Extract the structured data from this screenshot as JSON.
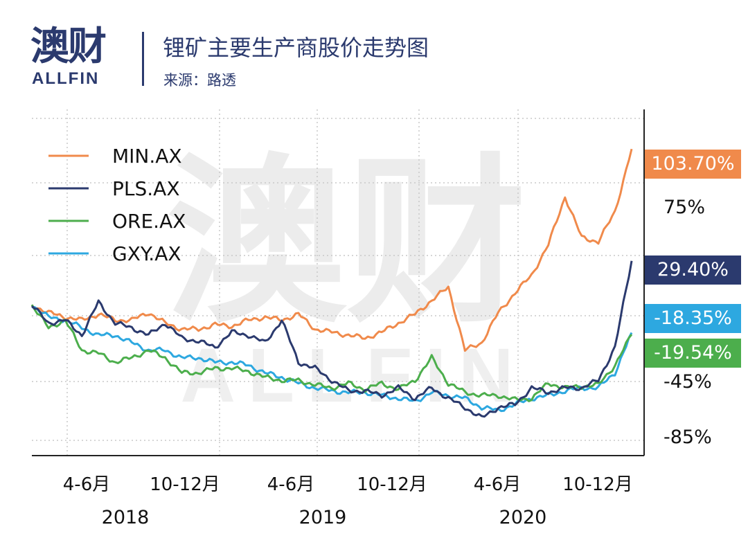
{
  "brand": {
    "name_cn": "澳财",
    "name_en": "ALLFIN"
  },
  "header": {
    "title": "锂矿主要生产商股价走势图",
    "source": "来源：路透"
  },
  "chart_data": {
    "type": "line",
    "title": "锂矿主要生产商股价走势图",
    "subtitle": "来源：路透",
    "xlabel": "",
    "ylabel": "",
    "x_tick_labels": [
      "4-6月",
      "10-12月",
      "4-6月",
      "10-12月",
      "4-6月",
      "10-12月"
    ],
    "x_group_labels": [
      "2018",
      "2019",
      "2020"
    ],
    "y_tick_labels": [
      "75%",
      "-45%",
      "-85%"
    ],
    "ylim": [
      -100,
      130
    ],
    "grid": true,
    "legend_position": "top-left",
    "end_labels": [
      "103.70%",
      "29.40%",
      "-18.35%",
      "-19.54%"
    ],
    "colors": {
      "MIN.AX": "#f08a4b",
      "PLS.AX": "#2b3a6e",
      "ORE.AX": "#4cae4c",
      "GXY.AX": "#2da8e0"
    },
    "x": [
      "2018-01",
      "2018-02",
      "2018-03",
      "2018-04",
      "2018-05",
      "2018-06",
      "2018-07",
      "2018-08",
      "2018-09",
      "2018-10",
      "2018-11",
      "2018-12",
      "2019-01",
      "2019-02",
      "2019-03",
      "2019-04",
      "2019-05",
      "2019-06",
      "2019-07",
      "2019-08",
      "2019-09",
      "2019-10",
      "2019-11",
      "2019-12",
      "2020-01",
      "2020-02",
      "2020-03",
      "2020-04",
      "2020-05",
      "2020-06",
      "2020-07",
      "2020-08",
      "2020-09",
      "2020-10",
      "2020-11",
      "2020-12",
      "2021-01"
    ],
    "series": [
      {
        "name": "MIN.AX",
        "values": [
          0,
          -5,
          -8,
          -10,
          -6,
          -10,
          -10,
          -5,
          -12,
          -16,
          -16,
          -13,
          -14,
          -10,
          -8,
          -10,
          -6,
          -16,
          -18,
          -20,
          -22,
          -18,
          -12,
          -6,
          3,
          12,
          -30,
          -25,
          -5,
          8,
          20,
          40,
          72,
          45,
          42,
          62,
          103.7
        ]
      },
      {
        "name": "PLS.AX",
        "values": [
          0,
          -12,
          -10,
          -20,
          2,
          -12,
          -15,
          -20,
          -12,
          -22,
          -24,
          -28,
          -18,
          -20,
          -25,
          -10,
          -38,
          -42,
          -50,
          -57,
          -57,
          -60,
          -55,
          -62,
          -55,
          -62,
          -68,
          -75,
          -68,
          -66,
          -55,
          -58,
          -55,
          -55,
          -50,
          -28,
          29.4
        ]
      },
      {
        "name": "ORE.AX",
        "values": [
          0,
          -15,
          -10,
          -30,
          -32,
          -38,
          -35,
          -30,
          -35,
          -45,
          -45,
          -42,
          -42,
          -44,
          -48,
          -50,
          -50,
          -53,
          -55,
          -52,
          -56,
          -52,
          -56,
          -50,
          -35,
          -52,
          -58,
          -60,
          -60,
          -63,
          -62,
          -52,
          -55,
          -54,
          -53,
          -40,
          -19.54
        ]
      },
      {
        "name": "GXY.AX",
        "values": [
          0,
          -8,
          -10,
          -15,
          -20,
          -20,
          -25,
          -30,
          -30,
          -35,
          -35,
          -38,
          -38,
          -40,
          -45,
          -48,
          -52,
          -55,
          -57,
          -58,
          -58,
          -60,
          -62,
          -64,
          -58,
          -60,
          -62,
          -68,
          -70,
          -66,
          -62,
          -60,
          -57,
          -55,
          -55,
          -45,
          -18.35
        ]
      }
    ]
  }
}
